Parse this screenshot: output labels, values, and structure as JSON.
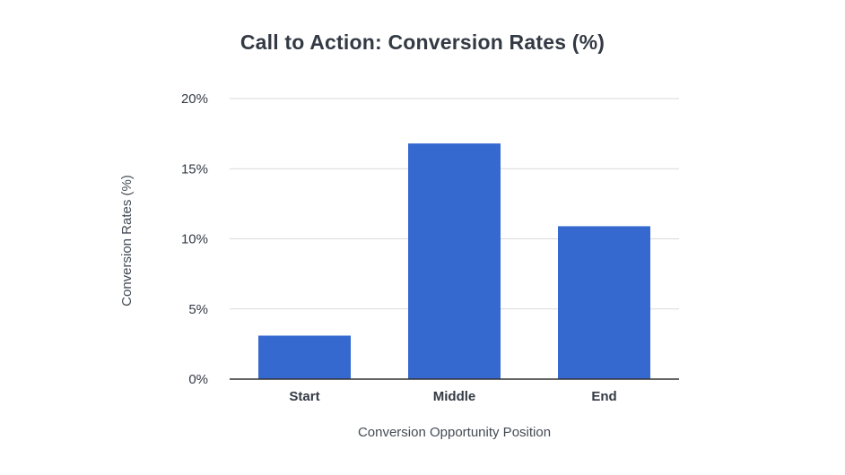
{
  "chart_data": {
    "type": "bar",
    "title": "Call to Action: Conversion Rates (%)",
    "xlabel": "Conversion Opportunity Position",
    "ylabel": "Conversion Rates (%)",
    "categories": [
      "Start",
      "Middle",
      "End"
    ],
    "values": [
      3.1,
      16.8,
      10.9
    ],
    "ylim": [
      0,
      20
    ],
    "yticks": [
      0,
      5,
      10,
      15,
      20
    ],
    "ytick_labels": [
      "0%",
      "5%",
      "10%",
      "15%",
      "20%"
    ],
    "bar_color": "#3569cf",
    "grid": true,
    "legend": "none"
  }
}
